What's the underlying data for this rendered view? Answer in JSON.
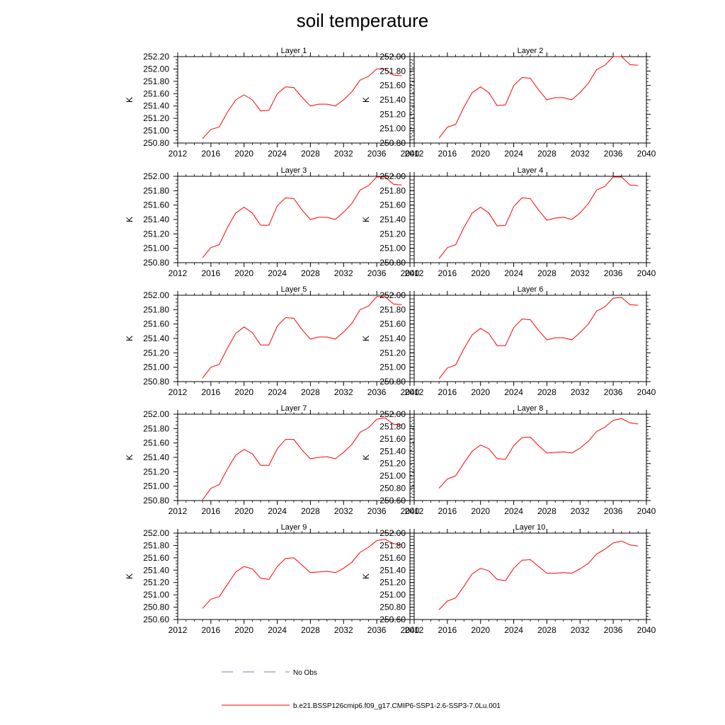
{
  "title": "soil temperature",
  "chart_data": [
    {
      "type": "line",
      "title": "Layer 1",
      "ylabel": "K",
      "xlim": [
        2012,
        2040
      ],
      "ylim": [
        250.8,
        252.2
      ],
      "xticks": [
        "2012",
        "2016",
        "2020",
        "2024",
        "2028",
        "2032",
        "2036",
        "2040"
      ],
      "yticks": [
        "250.80",
        "251.00",
        "251.20",
        "251.40",
        "251.60",
        "251.80",
        "252.00",
        "252.20"
      ],
      "series": [
        {
          "name": "b.e21.BSSP126cmip6.f09_g17.CMIP6-SSP1-2.6-SSP3-7.0Lu.001",
          "color": "#ff0000",
          "x": [
            2015,
            2016,
            2017,
            2018,
            2019,
            2020,
            2021,
            2022,
            2023,
            2024,
            2025,
            2026,
            2027,
            2028,
            2029,
            2030,
            2031,
            2032,
            2033,
            2034,
            2035,
            2036,
            2037,
            2038,
            2039
          ],
          "values": [
            250.87,
            251.02,
            251.06,
            251.3,
            251.5,
            251.58,
            251.5,
            251.32,
            251.33,
            251.6,
            251.71,
            251.7,
            251.54,
            251.4,
            251.43,
            251.43,
            251.4,
            251.5,
            251.63,
            251.82,
            251.88,
            252.0,
            252.0,
            251.9,
            251.89
          ]
        }
      ]
    },
    {
      "type": "line",
      "title": "Layer 2",
      "ylabel": "K",
      "xlim": [
        2012,
        2040
      ],
      "ylim": [
        250.8,
        252.0
      ],
      "xticks": [
        "2012",
        "2016",
        "2020",
        "2024",
        "2028",
        "2032",
        "2036",
        "2040"
      ],
      "yticks": [
        "250.80",
        "251.00",
        "251.20",
        "251.40",
        "251.60",
        "251.80",
        "252.00"
      ],
      "series": [
        {
          "name": "b.e21.BSSP126cmip6.f09_g17.CMIP6-SSP1-2.6-SSP3-7.0Lu.001",
          "color": "#ff0000",
          "x": [
            2015,
            2016,
            2017,
            2018,
            2019,
            2020,
            2021,
            2022,
            2023,
            2024,
            2025,
            2026,
            2027,
            2028,
            2029,
            2030,
            2031,
            2032,
            2033,
            2034,
            2035,
            2036,
            2037,
            2038,
            2039
          ],
          "values": [
            250.87,
            251.02,
            251.06,
            251.3,
            251.5,
            251.58,
            251.5,
            251.32,
            251.33,
            251.6,
            251.71,
            251.7,
            251.54,
            251.4,
            251.43,
            251.43,
            251.4,
            251.5,
            251.63,
            251.82,
            251.88,
            252.0,
            252.0,
            251.89,
            251.88
          ]
        }
      ]
    },
    {
      "type": "line",
      "title": "Layer 3",
      "ylabel": "K",
      "xlim": [
        2012,
        2040
      ],
      "ylim": [
        250.8,
        252.0
      ],
      "xticks": [
        "2012",
        "2016",
        "2020",
        "2024",
        "2028",
        "2032",
        "2036",
        "2040"
      ],
      "yticks": [
        "250.80",
        "251.00",
        "251.20",
        "251.40",
        "251.60",
        "251.80",
        "252.00"
      ],
      "series": [
        {
          "name": "b.e21.BSSP126cmip6.f09_g17.CMIP6-SSP1-2.6-SSP3-7.0Lu.001",
          "color": "#ff0000",
          "x": [
            2015,
            2016,
            2017,
            2018,
            2019,
            2020,
            2021,
            2022,
            2023,
            2024,
            2025,
            2026,
            2027,
            2028,
            2029,
            2030,
            2031,
            2032,
            2033,
            2034,
            2035,
            2036,
            2037,
            2038,
            2039
          ],
          "values": [
            250.87,
            251.01,
            251.05,
            251.29,
            251.49,
            251.57,
            251.49,
            251.32,
            251.32,
            251.59,
            251.7,
            251.69,
            251.53,
            251.4,
            251.43,
            251.43,
            251.4,
            251.5,
            251.62,
            251.81,
            251.87,
            251.99,
            251.99,
            251.89,
            251.88
          ]
        }
      ]
    },
    {
      "type": "line",
      "title": "Layer 4",
      "ylabel": "K",
      "xlim": [
        2012,
        2040
      ],
      "ylim": [
        250.8,
        252.0
      ],
      "xticks": [
        "2012",
        "2016",
        "2020",
        "2024",
        "2028",
        "2032",
        "2036",
        "2040"
      ],
      "yticks": [
        "250.80",
        "251.00",
        "251.20",
        "251.40",
        "251.60",
        "251.80",
        "252.00"
      ],
      "series": [
        {
          "name": "b.e21.BSSP126cmip6.f09_g17.CMIP6-SSP1-2.6-SSP3-7.0Lu.001",
          "color": "#ff0000",
          "x": [
            2015,
            2016,
            2017,
            2018,
            2019,
            2020,
            2021,
            2022,
            2023,
            2024,
            2025,
            2026,
            2027,
            2028,
            2029,
            2030,
            2031,
            2032,
            2033,
            2034,
            2035,
            2036,
            2037,
            2038,
            2039
          ],
          "values": [
            250.86,
            251.01,
            251.05,
            251.29,
            251.49,
            251.57,
            251.49,
            251.31,
            251.32,
            251.58,
            251.7,
            251.69,
            251.53,
            251.39,
            251.42,
            251.43,
            251.4,
            251.49,
            251.62,
            251.81,
            251.86,
            251.99,
            251.99,
            251.88,
            251.87
          ]
        }
      ]
    },
    {
      "type": "line",
      "title": "Layer 5",
      "ylabel": "K",
      "xlim": [
        2012,
        2040
      ],
      "ylim": [
        250.8,
        252.0
      ],
      "xticks": [
        "2012",
        "2016",
        "2020",
        "2024",
        "2028",
        "2032",
        "2036",
        "2040"
      ],
      "yticks": [
        "250.80",
        "251.00",
        "251.20",
        "251.40",
        "251.60",
        "251.80",
        "252.00"
      ],
      "series": [
        {
          "name": "b.e21.BSSP126cmip6.f09_g17.CMIP6-SSP1-2.6-SSP3-7.0Lu.001",
          "color": "#ff0000",
          "x": [
            2015,
            2016,
            2017,
            2018,
            2019,
            2020,
            2021,
            2022,
            2023,
            2024,
            2025,
            2026,
            2027,
            2028,
            2029,
            2030,
            2031,
            2032,
            2033,
            2034,
            2035,
            2036,
            2037,
            2038,
            2039
          ],
          "values": [
            250.85,
            251.0,
            251.04,
            251.27,
            251.47,
            251.56,
            251.48,
            251.31,
            251.31,
            251.57,
            251.69,
            251.68,
            251.52,
            251.39,
            251.42,
            251.42,
            251.39,
            251.49,
            251.61,
            251.8,
            251.85,
            251.98,
            251.98,
            251.88,
            251.87
          ]
        }
      ]
    },
    {
      "type": "line",
      "title": "Layer 6",
      "ylabel": "K",
      "xlim": [
        2012,
        2040
      ],
      "ylim": [
        250.8,
        252.0
      ],
      "xticks": [
        "2012",
        "2016",
        "2020",
        "2024",
        "2028",
        "2032",
        "2036",
        "2040"
      ],
      "yticks": [
        "250.80",
        "251.00",
        "251.20",
        "251.40",
        "251.60",
        "251.80",
        "252.00"
      ],
      "series": [
        {
          "name": "b.e21.BSSP126cmip6.f09_g17.CMIP6-SSP1-2.6-SSP3-7.0Lu.001",
          "color": "#ff0000",
          "x": [
            2015,
            2016,
            2017,
            2018,
            2019,
            2020,
            2021,
            2022,
            2023,
            2024,
            2025,
            2026,
            2027,
            2028,
            2029,
            2030,
            2031,
            2032,
            2033,
            2034,
            2035,
            2036,
            2037,
            2038,
            2039
          ],
          "values": [
            250.84,
            250.99,
            251.03,
            251.26,
            251.45,
            251.54,
            251.47,
            251.3,
            251.3,
            251.55,
            251.67,
            251.66,
            251.51,
            251.38,
            251.41,
            251.41,
            251.38,
            251.48,
            251.6,
            251.78,
            251.84,
            251.96,
            251.97,
            251.87,
            251.86
          ]
        }
      ]
    },
    {
      "type": "line",
      "title": "Layer 7",
      "ylabel": "K",
      "xlim": [
        2012,
        2040
      ],
      "ylim": [
        250.8,
        252.0
      ],
      "xticks": [
        "2012",
        "2016",
        "2020",
        "2024",
        "2028",
        "2032",
        "2036",
        "2040"
      ],
      "yticks": [
        "250.80",
        "251.00",
        "251.20",
        "251.40",
        "251.60",
        "251.80",
        "252.00"
      ],
      "series": [
        {
          "name": "b.e21.BSSP126cmip6.f09_g17.CMIP6-SSP1-2.6-SSP3-7.0Lu.001",
          "color": "#ff0000",
          "x": [
            2015,
            2016,
            2017,
            2018,
            2019,
            2020,
            2021,
            2022,
            2023,
            2024,
            2025,
            2026,
            2027,
            2028,
            2029,
            2030,
            2031,
            2032,
            2033,
            2034,
            2035,
            2036,
            2037,
            2038,
            2039
          ],
          "values": [
            250.81,
            250.97,
            251.02,
            251.24,
            251.43,
            251.51,
            251.45,
            251.29,
            251.29,
            251.52,
            251.65,
            251.65,
            251.5,
            251.38,
            251.4,
            251.41,
            251.38,
            251.47,
            251.58,
            251.75,
            251.81,
            251.93,
            251.95,
            251.86,
            251.85
          ]
        }
      ]
    },
    {
      "type": "line",
      "title": "Layer 8",
      "ylabel": "K",
      "xlim": [
        2012,
        2040
      ],
      "ylim": [
        250.6,
        252.0
      ],
      "xticks": [
        "2012",
        "2016",
        "2020",
        "2024",
        "2028",
        "2032",
        "2036",
        "2040"
      ],
      "yticks": [
        "250.60",
        "250.80",
        "251.00",
        "251.20",
        "251.40",
        "251.60",
        "251.80",
        "252.00"
      ],
      "series": [
        {
          "name": "b.e21.BSSP126cmip6.f09_g17.CMIP6-SSP1-2.6-SSP3-7.0Lu.001",
          "color": "#ff0000",
          "x": [
            2015,
            2016,
            2017,
            2018,
            2019,
            2020,
            2021,
            2022,
            2023,
            2024,
            2025,
            2026,
            2027,
            2028,
            2029,
            2030,
            2031,
            2032,
            2033,
            2034,
            2035,
            2036,
            2037,
            2038,
            2039
          ],
          "values": [
            250.8,
            250.95,
            251.0,
            251.21,
            251.4,
            251.5,
            251.44,
            251.28,
            251.27,
            251.49,
            251.62,
            251.63,
            251.49,
            251.37,
            251.38,
            251.39,
            251.37,
            251.45,
            251.56,
            251.72,
            251.79,
            251.9,
            251.93,
            251.86,
            251.84
          ]
        }
      ]
    },
    {
      "type": "line",
      "title": "Layer 9",
      "ylabel": "K",
      "xlim": [
        2012,
        2040
      ],
      "ylim": [
        250.6,
        252.0
      ],
      "xticks": [
        "2012",
        "2016",
        "2020",
        "2024",
        "2028",
        "2032",
        "2036",
        "2040"
      ],
      "yticks": [
        "250.60",
        "250.80",
        "251.00",
        "251.20",
        "251.40",
        "251.60",
        "251.80",
        "252.00"
      ],
      "series": [
        {
          "name": "b.e21.BSSP126cmip6.f09_g17.CMIP6-SSP1-2.6-SSP3-7.0Lu.001",
          "color": "#ff0000",
          "x": [
            2015,
            2016,
            2017,
            2018,
            2019,
            2020,
            2021,
            2022,
            2023,
            2024,
            2025,
            2026,
            2027,
            2028,
            2029,
            2030,
            2031,
            2032,
            2033,
            2034,
            2035,
            2036,
            2037,
            2038,
            2039
          ],
          "values": [
            250.78,
            250.93,
            250.97,
            251.17,
            251.37,
            251.46,
            251.42,
            251.27,
            251.25,
            251.46,
            251.59,
            251.6,
            251.48,
            251.36,
            251.37,
            251.38,
            251.36,
            251.43,
            251.53,
            251.69,
            251.77,
            251.88,
            251.9,
            251.83,
            251.81
          ]
        }
      ]
    },
    {
      "type": "line",
      "title": "Layer 10",
      "ylabel": "K",
      "xlim": [
        2012,
        2040
      ],
      "ylim": [
        250.6,
        252.0
      ],
      "xticks": [
        "2012",
        "2016",
        "2020",
        "2024",
        "2028",
        "2032",
        "2036",
        "2040"
      ],
      "yticks": [
        "250.60",
        "250.80",
        "251.00",
        "251.20",
        "251.40",
        "251.60",
        "251.80",
        "252.00"
      ],
      "series": [
        {
          "name": "b.e21.BSSP126cmip6.f09_g17.CMIP6-SSP1-2.6-SSP3-7.0Lu.001",
          "color": "#ff0000",
          "x": [
            2015,
            2016,
            2017,
            2018,
            2019,
            2020,
            2021,
            2022,
            2023,
            2024,
            2025,
            2026,
            2027,
            2028,
            2029,
            2030,
            2031,
            2032,
            2033,
            2034,
            2035,
            2036,
            2037,
            2038,
            2039
          ],
          "values": [
            250.76,
            250.9,
            250.95,
            251.14,
            251.34,
            251.43,
            251.39,
            251.25,
            251.23,
            251.43,
            251.56,
            251.57,
            251.46,
            251.35,
            251.35,
            251.36,
            251.35,
            251.42,
            251.51,
            251.66,
            251.74,
            251.84,
            251.87,
            251.81,
            251.79
          ]
        }
      ]
    }
  ],
  "legend": [
    {
      "label": "No Obs",
      "color": "#7777bb",
      "style": "dashed"
    },
    {
      "label": "b.e21.BSSP126cmip6.f09_g17.CMIP6-SSP1-2.6-SSP3-7.0Lu.001",
      "color": "#ff0000",
      "style": "solid"
    }
  ]
}
